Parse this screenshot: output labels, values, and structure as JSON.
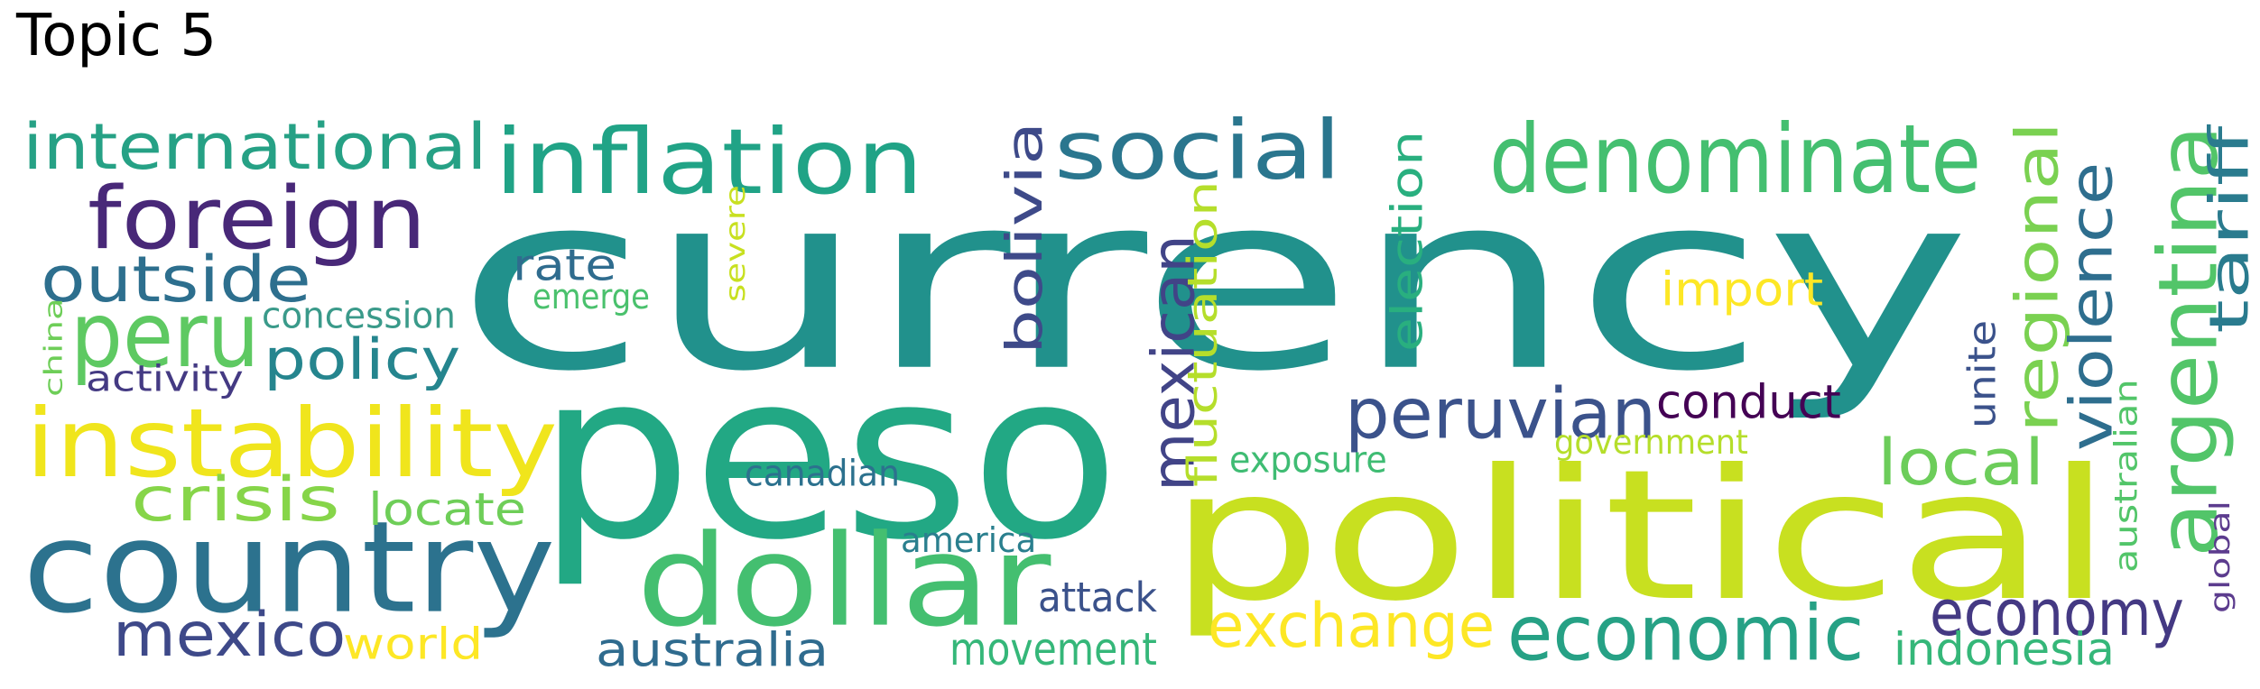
{
  "title": "Topic 5",
  "words": [
    {
      "text": "currency",
      "color": "#21918c",
      "vertical": false
    },
    {
      "text": "peso",
      "color": "#22a884",
      "vertical": false
    },
    {
      "text": "political",
      "color": "#c8e020",
      "vertical": false
    },
    {
      "text": "country",
      "color": "#2c728e",
      "vertical": false
    },
    {
      "text": "dollar",
      "color": "#44bf70",
      "vertical": false
    },
    {
      "text": "inflation",
      "color": "#20a386",
      "vertical": false
    },
    {
      "text": "denominate",
      "color": "#44bf70",
      "vertical": false
    },
    {
      "text": "social",
      "color": "#2a768e",
      "vertical": false
    },
    {
      "text": "foreign",
      "color": "#482878",
      "vertical": false
    },
    {
      "text": "instability",
      "color": "#f0e51c",
      "vertical": false
    },
    {
      "text": "argentina",
      "color": "#52c569",
      "vertical": true
    },
    {
      "text": "international",
      "color": "#26a185",
      "vertical": false
    },
    {
      "text": "outside",
      "color": "#2d6f8e",
      "vertical": false
    },
    {
      "text": "peru",
      "color": "#5ec962",
      "vertical": false
    },
    {
      "text": "economic",
      "color": "#26a185",
      "vertical": false
    },
    {
      "text": "peruvian",
      "color": "#3b528b",
      "vertical": false
    },
    {
      "text": "mexican",
      "color": "#414487",
      "vertical": true
    },
    {
      "text": "regional",
      "color": "#7ad151",
      "vertical": true
    },
    {
      "text": "violence",
      "color": "#2e6e8e",
      "vertical": true
    },
    {
      "text": "tariff",
      "color": "#2a7b8e",
      "vertical": true
    },
    {
      "text": "exchange",
      "color": "#fde725",
      "vertical": false
    },
    {
      "text": "mexico",
      "color": "#3e4989",
      "vertical": false
    },
    {
      "text": "crisis",
      "color": "#86d549",
      "vertical": false
    },
    {
      "text": "policy",
      "color": "#25858e",
      "vertical": false
    },
    {
      "text": "economy",
      "color": "#443983",
      "vertical": false
    },
    {
      "text": "local",
      "color": "#6ccd5a",
      "vertical": false
    },
    {
      "text": "bolivia",
      "color": "#3e4a89",
      "vertical": true
    },
    {
      "text": "fluctuation",
      "color": "#b5de2b",
      "vertical": true
    },
    {
      "text": "election",
      "color": "#29af7f",
      "vertical": true
    },
    {
      "text": "conduct",
      "color": "#440154",
      "vertical": false
    },
    {
      "text": "import",
      "color": "#fde725",
      "vertical": false
    },
    {
      "text": "australia",
      "color": "#2f6b8e",
      "vertical": false
    },
    {
      "text": "movement",
      "color": "#35b779",
      "vertical": false
    },
    {
      "text": "indonesia",
      "color": "#35b779",
      "vertical": false
    },
    {
      "text": "world",
      "color": "#fde725",
      "vertical": false
    },
    {
      "text": "locate",
      "color": "#6ece58",
      "vertical": false
    },
    {
      "text": "rate",
      "color": "#2f6c8e",
      "vertical": false
    },
    {
      "text": "unite",
      "color": "#3b528b",
      "vertical": true
    },
    {
      "text": "concession",
      "color": "#3a9a8a",
      "vertical": false
    },
    {
      "text": "attack",
      "color": "#3b528b",
      "vertical": false
    },
    {
      "text": "canadian",
      "color": "#2c718e",
      "vertical": false
    },
    {
      "text": "america",
      "color": "#2a7f8e",
      "vertical": false
    },
    {
      "text": "australian",
      "color": "#52c569",
      "vertical": true
    },
    {
      "text": "exposure",
      "color": "#3fbc73",
      "vertical": false
    },
    {
      "text": "government",
      "color": "#b5de2b",
      "vertical": false
    },
    {
      "text": "activity",
      "color": "#443a83",
      "vertical": false
    },
    {
      "text": "emerge",
      "color": "#4ac16d",
      "vertical": false
    },
    {
      "text": "severe",
      "color": "#c8e020",
      "vertical": true
    },
    {
      "text": "china",
      "color": "#6ece58",
      "vertical": true
    },
    {
      "text": "global",
      "color": "#5c3c8e",
      "vertical": true
    }
  ]
}
